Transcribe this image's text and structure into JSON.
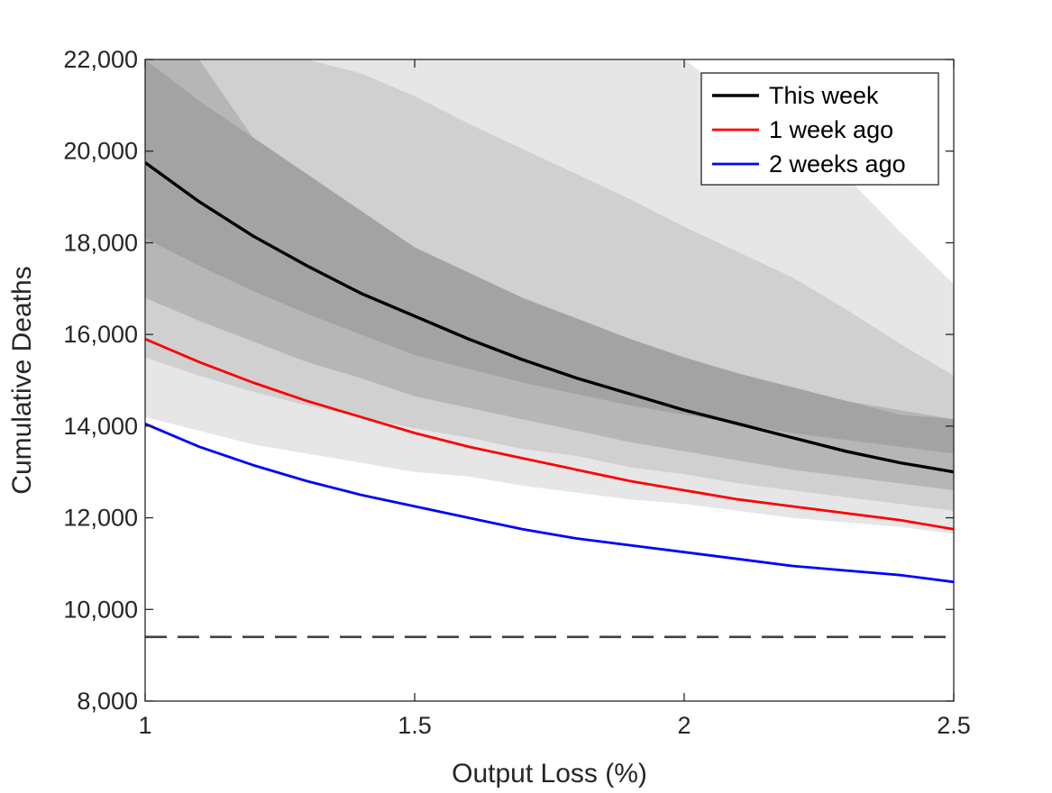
{
  "chart_data": {
    "type": "line",
    "title": "",
    "xlabel": "Output Loss (%)",
    "ylabel": "Cumulative Deaths",
    "xlim": [
      1,
      2.5
    ],
    "ylim": [
      8000,
      22000
    ],
    "xticks": [
      1,
      1.5,
      2,
      2.5
    ],
    "xtick_labels": [
      "1",
      "1.5",
      "2",
      "2.5"
    ],
    "yticks": [
      8000,
      10000,
      12000,
      14000,
      16000,
      18000,
      20000,
      22000
    ],
    "ytick_labels": [
      "8,000",
      "10,000",
      "12,000",
      "14,000",
      "16,000",
      "18,000",
      "20,000",
      "22,000"
    ],
    "grid": false,
    "legend_position": "top-right",
    "x": [
      1.0,
      1.1,
      1.2,
      1.3,
      1.4,
      1.5,
      1.6,
      1.7,
      1.8,
      1.9,
      2.0,
      2.1,
      2.2,
      2.3,
      2.4,
      2.5
    ],
    "series": [
      {
        "name": "This week",
        "color": "#000000",
        "values": [
          19750,
          18900,
          18150,
          17500,
          16900,
          16400,
          15900,
          15450,
          15050,
          14700,
          14350,
          14050,
          13750,
          13450,
          13200,
          13000
        ]
      },
      {
        "name": "1 week ago",
        "color": "#ff0000",
        "values": [
          15900,
          15400,
          14950,
          14550,
          14200,
          13850,
          13550,
          13300,
          13050,
          12800,
          12600,
          12400,
          12250,
          12100,
          11950,
          11750
        ]
      },
      {
        "name": "2 weeks ago",
        "color": "#0000ff",
        "values": [
          14050,
          13550,
          13150,
          12800,
          12500,
          12250,
          12000,
          11750,
          11550,
          11400,
          11250,
          11100,
          10950,
          10850,
          10750,
          10600
        ]
      }
    ],
    "bands": [
      {
        "color": "#e6e6e6",
        "lower": [
          14200,
          13900,
          13600,
          13400,
          13200,
          13000,
          12900,
          12700,
          12550,
          12400,
          12300,
          12150,
          12000,
          11900,
          11800,
          11650
        ],
        "upper": [
          22000,
          22000,
          22000,
          22000,
          22000,
          22000,
          22000,
          22000,
          22000,
          22000,
          22000,
          21100,
          20250,
          19450,
          18250,
          17100
        ]
      },
      {
        "color": "#d0d0d0",
        "lower": [
          15500,
          15100,
          14750,
          14450,
          14200,
          13950,
          13750,
          13500,
          13350,
          13100,
          12950,
          12750,
          12600,
          12450,
          12300,
          12150
        ],
        "upper": [
          22000,
          22000,
          22000,
          22000,
          21700,
          21200,
          20600,
          20050,
          19500,
          18950,
          18350,
          17800,
          17250,
          16550,
          15800,
          15100
        ]
      },
      {
        "color": "#b6b6b6",
        "lower": [
          16800,
          16300,
          15850,
          15400,
          15050,
          14650,
          14400,
          14150,
          13900,
          13650,
          13450,
          13250,
          13050,
          12900,
          12750,
          12600
        ],
        "upper": [
          22000,
          22000,
          20300,
          19500,
          18700,
          17900,
          17350,
          16800,
          16350,
          15900,
          15500,
          15150,
          14850,
          14550,
          14350,
          14150
        ]
      },
      {
        "color": "#a3a3a3",
        "lower": [
          18100,
          17500,
          16950,
          16450,
          16000,
          15550,
          15250,
          14950,
          14700,
          14450,
          14250,
          14050,
          13850,
          13700,
          13550,
          13400
        ],
        "upper": [
          22000,
          21100,
          20300,
          19500,
          18700,
          17900,
          17350,
          16800,
          16350,
          15900,
          15500,
          15150,
          14850,
          14550,
          14250,
          14150
        ]
      }
    ],
    "reference_line": {
      "y": 9400,
      "style": "dashed",
      "color": "#404040"
    }
  }
}
